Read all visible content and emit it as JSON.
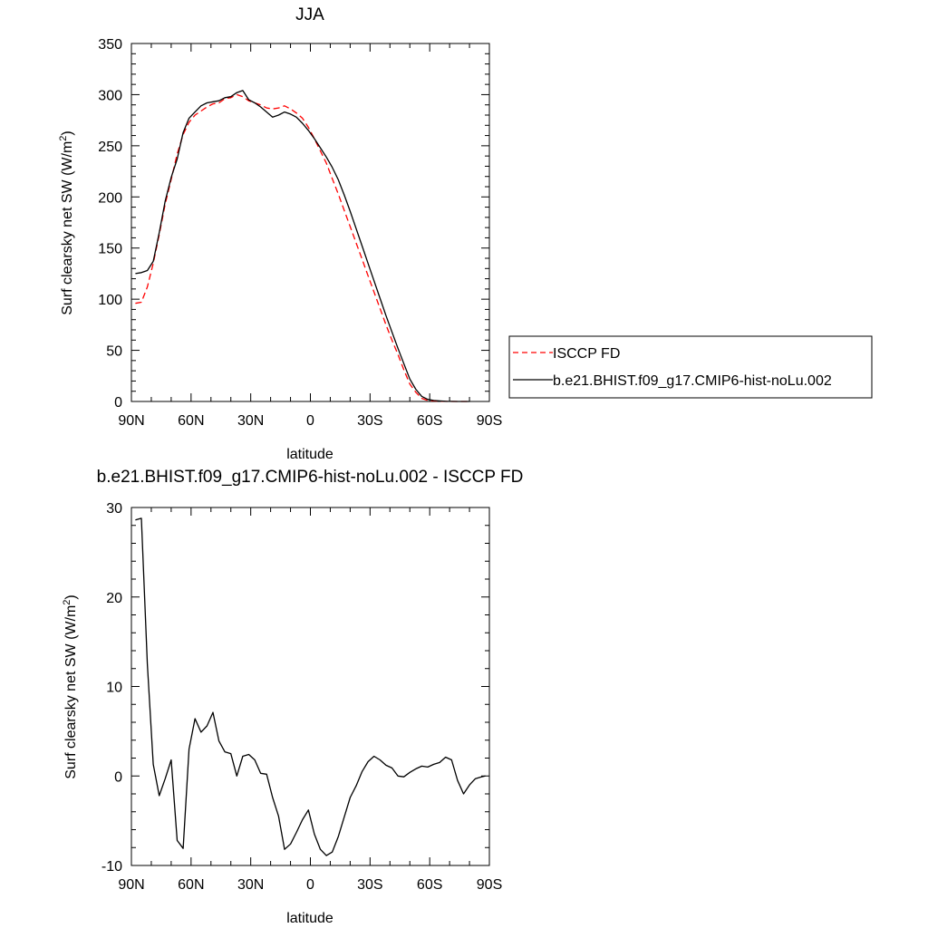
{
  "chart_data": [
    {
      "type": "line",
      "title": "JJA",
      "xlabel": "latitude",
      "ylabel_main": "Surf clearsky net SW (W/m",
      "ylabel_sup": "2",
      "ylabel_end": ")",
      "xlim": [
        90,
        -90
      ],
      "ylim": [
        0,
        350
      ],
      "xticks": [
        90,
        60,
        30,
        0,
        -30,
        -60,
        -90
      ],
      "xtick_labels": [
        "90N",
        "60N",
        "30N",
        "0",
        "30S",
        "60S",
        "90S"
      ],
      "yticks": [
        0,
        50,
        100,
        150,
        200,
        250,
        300,
        350
      ],
      "ytick_labels": [
        "0",
        "50",
        "100",
        "150",
        "200",
        "250",
        "300",
        "350"
      ],
      "legend": {
        "position": "right",
        "entries": [
          "ISCCP FD",
          "b.e21.BHIST.f09_g17.CMIP6-hist-noLu.002"
        ]
      },
      "series": [
        {
          "name": "ISCCP FD",
          "color": "#ff0000",
          "dash": "dashed",
          "x": [
            88,
            85,
            82,
            79,
            76,
            73,
            70,
            67,
            64,
            61,
            58,
            55,
            52,
            49,
            46,
            43,
            40,
            37,
            34,
            31,
            28,
            25,
            22,
            19,
            16,
            13,
            10,
            7,
            4,
            1,
            -2,
            -5,
            -8,
            -11,
            -14,
            -17,
            -20,
            -23,
            -26,
            -29,
            -32,
            -35,
            -38,
            -41,
            -44,
            -47,
            -50,
            -53,
            -56,
            -59,
            -62,
            -65,
            -68,
            -71,
            -74,
            -77,
            -80
          ],
          "y": [
            96,
            97,
            112,
            135,
            163,
            193,
            217,
            242,
            261,
            273,
            280,
            284,
            288,
            291,
            292,
            296,
            297,
            300,
            298,
            294,
            292,
            290,
            287,
            286,
            287,
            289,
            286,
            282,
            277,
            268,
            257,
            245,
            233,
            218,
            203,
            187,
            171,
            155,
            139,
            123,
            107,
            91,
            75,
            60,
            46,
            31,
            17,
            9,
            3,
            1,
            0.5,
            0.2,
            0.1,
            0,
            0,
            0,
            0
          ]
        },
        {
          "name": "b.e21.BHIST.f09_g17.CMIP6-hist-noLu.002",
          "color": "#000000",
          "dash": "solid",
          "x": [
            88,
            85,
            82,
            79,
            76,
            73,
            70,
            67,
            64,
            61,
            58,
            55,
            52,
            49,
            46,
            43,
            40,
            37,
            34,
            31,
            28,
            25,
            22,
            19,
            16,
            13,
            10,
            7,
            4,
            1,
            -2,
            -5,
            -8,
            -11,
            -14,
            -17,
            -20,
            -23,
            -26,
            -29,
            -32,
            -35,
            -38,
            -41,
            -44,
            -47,
            -50,
            -53,
            -56,
            -59,
            -62,
            -65,
            -68,
            -71,
            -74,
            -77,
            -80
          ],
          "y": [
            125,
            126,
            128,
            137,
            165,
            196,
            219,
            237,
            263,
            277,
            283,
            289,
            292,
            293,
            294,
            297,
            298,
            302,
            304,
            295,
            292,
            288,
            283,
            278,
            280,
            283,
            281,
            278,
            272,
            265,
            257,
            248,
            239,
            229,
            217,
            202,
            186,
            169,
            152,
            135,
            118,
            101,
            84,
            68,
            52,
            37,
            22,
            12,
            5,
            2,
            1,
            0.5,
            0.2,
            0.1,
            0,
            0,
            0
          ]
        }
      ]
    },
    {
      "type": "line",
      "title": "b.e21.BHIST.f09_g17.CMIP6-hist-noLu.002 - ISCCP FD",
      "xlabel": "latitude",
      "ylabel_main": "Surf clearsky net SW (W/m",
      "ylabel_sup": "2",
      "ylabel_end": ")",
      "xlim": [
        90,
        -90
      ],
      "ylim": [
        -10,
        30
      ],
      "xticks": [
        90,
        60,
        30,
        0,
        -30,
        -60,
        -90
      ],
      "xtick_labels": [
        "90N",
        "60N",
        "30N",
        "0",
        "30S",
        "60S",
        "90S"
      ],
      "yticks": [
        -10,
        0,
        10,
        20,
        30
      ],
      "ytick_labels": [
        "-10",
        "0",
        "10",
        "20",
        "30"
      ],
      "series": [
        {
          "color": "#000000",
          "dash": "solid",
          "x": [
            88,
            85,
            82,
            79,
            76,
            73,
            70,
            67,
            64,
            61,
            58,
            55,
            52,
            49,
            46,
            43,
            40,
            37,
            34,
            31,
            28,
            25,
            22,
            19,
            16,
            13,
            10,
            7,
            4,
            1,
            -2,
            -5,
            -8,
            -11,
            -14,
            -17,
            -20,
            -23,
            -26,
            -29,
            -32,
            -35,
            -38,
            -41,
            -44,
            -47,
            -50,
            -53,
            -56,
            -59,
            -62,
            -65,
            -68,
            -71,
            -74,
            -77,
            -80,
            -83,
            -86,
            -88
          ],
          "y": [
            28.6,
            28.8,
            12.5,
            1.3,
            -2.2,
            -0.3,
            1.8,
            -7.2,
            -8.1,
            3.0,
            6.4,
            4.9,
            5.6,
            7.1,
            3.9,
            2.7,
            2.5,
            0.0,
            2.2,
            2.4,
            1.8,
            0.3,
            0.2,
            -2.4,
            -4.5,
            -8.2,
            -7.6,
            -6.3,
            -4.9,
            -3.8,
            -6.5,
            -8.2,
            -8.9,
            -8.5,
            -6.8,
            -4.6,
            -2.4,
            -1.1,
            0.5,
            1.6,
            2.2,
            1.8,
            1.2,
            0.9,
            0.0,
            -0.1,
            0.4,
            0.8,
            1.1,
            1.0,
            1.3,
            1.5,
            2.1,
            1.8,
            -0.5,
            -2.0,
            -1.0,
            -0.3,
            -0.1,
            0.0
          ]
        }
      ]
    }
  ]
}
